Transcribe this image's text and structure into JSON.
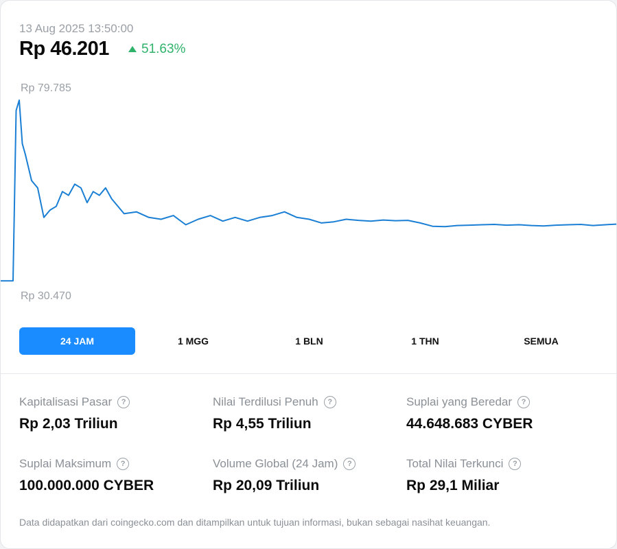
{
  "header": {
    "timestamp": "13 Aug 2025 13:50:00",
    "price": "Rp 46.201",
    "change": "51.63%",
    "change_color": "#2fb36b"
  },
  "chart_data": {
    "type": "line",
    "y_high_label": "Rp 79.785",
    "y_low_label": "Rp 30.470",
    "ylim": [
      30470,
      79785
    ],
    "line_color": "#1a7fd4",
    "x": [
      0,
      2,
      2.5,
      3,
      3.5,
      4,
      5,
      6,
      7,
      8,
      9,
      10,
      11,
      12,
      13,
      14,
      15,
      16,
      17,
      18,
      20,
      22,
      24,
      26,
      28,
      30,
      32,
      34,
      36,
      38,
      40,
      42,
      44,
      46,
      48,
      50,
      52,
      54,
      56,
      58,
      60,
      62,
      64,
      66,
      68,
      70,
      72,
      74,
      76,
      78,
      80,
      82,
      84,
      86,
      88,
      90,
      92,
      94,
      96,
      98,
      100
    ],
    "y": [
      30800,
      30800,
      77000,
      79785,
      68000,
      65000,
      58000,
      56000,
      48000,
      50000,
      51000,
      55000,
      54000,
      57000,
      56000,
      52000,
      55000,
      54000,
      56000,
      53000,
      49000,
      49500,
      48000,
      47500,
      48500,
      46000,
      47500,
      48500,
      47000,
      48000,
      47000,
      48000,
      48500,
      49500,
      48000,
      47500,
      46500,
      46800,
      47500,
      47200,
      47000,
      47300,
      47100,
      47200,
      46500,
      45600,
      45500,
      45800,
      45900,
      46000,
      46100,
      45900,
      46000,
      45800,
      45700,
      45900,
      46000,
      46100,
      45800,
      46000,
      46201
    ]
  },
  "periods": [
    {
      "label": "24 JAM",
      "active": true
    },
    {
      "label": "1 MGG",
      "active": false
    },
    {
      "label": "1 BLN",
      "active": false
    },
    {
      "label": "1 THN",
      "active": false
    },
    {
      "label": "SEMUA",
      "active": false
    }
  ],
  "accent_color": "#1a8cff",
  "stats": [
    {
      "name": "Kapitalisasi Pasar",
      "value": "Rp 2,03 Triliun"
    },
    {
      "name": "Nilai Terdilusi Penuh",
      "value": "Rp 4,55 Triliun"
    },
    {
      "name": "Suplai yang Beredar",
      "value": "44.648.683 CYBER"
    },
    {
      "name": "Suplai Maksimum",
      "value": "100.000.000 CYBER"
    },
    {
      "name": "Volume Global (24 Jam)",
      "value": "Rp 20,09 Triliun"
    },
    {
      "name": "Total Nilai Terkunci",
      "value": "Rp 29,1 Miliar"
    }
  ],
  "help_icon_glyph": "?",
  "disclaimer": "Data didapatkan dari coingecko.com dan ditampilkan untuk tujuan informasi, bukan sebagai nasihat keuangan."
}
